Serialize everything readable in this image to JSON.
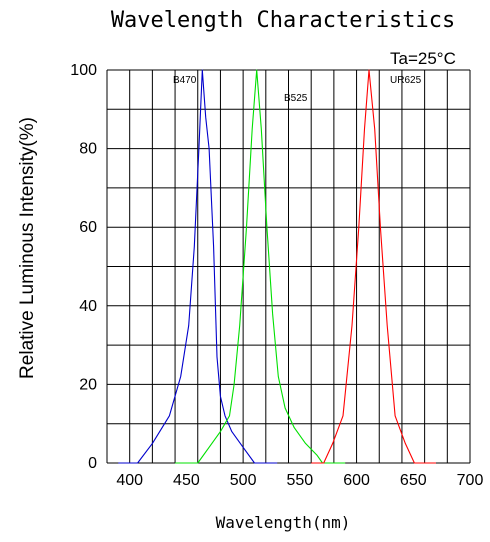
{
  "chart_data": {
    "type": "line",
    "title": "Wavelength Characteristics",
    "xlabel": "Wavelength(nm)",
    "ylabel": "Relative Luminous Intensity(%)",
    "annotation": "Ta=25°C",
    "xlim": [
      380,
      700
    ],
    "ylim": [
      0,
      100
    ],
    "xticks": [
      400,
      450,
      500,
      550,
      600,
      650,
      700
    ],
    "yticks": [
      0,
      20,
      40,
      60,
      80,
      100
    ],
    "grid": true,
    "series": [
      {
        "name": "B470",
        "color": "#0000cc",
        "points": [
          [
            390,
            0
          ],
          [
            407,
            0
          ],
          [
            420,
            5
          ],
          [
            435,
            12
          ],
          [
            445,
            22
          ],
          [
            452,
            35
          ],
          [
            457,
            55
          ],
          [
            461,
            80
          ],
          [
            464,
            100
          ],
          [
            467,
            88
          ],
          [
            470,
            80
          ],
          [
            474,
            55
          ],
          [
            477,
            27
          ],
          [
            480,
            17
          ],
          [
            484,
            12
          ],
          [
            490,
            8
          ],
          [
            500,
            4
          ],
          [
            510,
            0
          ],
          [
            530,
            0
          ]
        ]
      },
      {
        "name": "B525",
        "color": "#00e000",
        "points": [
          [
            440,
            0
          ],
          [
            460,
            0
          ],
          [
            470,
            4
          ],
          [
            480,
            8
          ],
          [
            488,
            12
          ],
          [
            492,
            20
          ],
          [
            497,
            35
          ],
          [
            503,
            60
          ],
          [
            508,
            85
          ],
          [
            512,
            100
          ],
          [
            516,
            85
          ],
          [
            521,
            60
          ],
          [
            526,
            38
          ],
          [
            531,
            22
          ],
          [
            537,
            14
          ],
          [
            545,
            9
          ],
          [
            555,
            5
          ],
          [
            565,
            2
          ],
          [
            570,
            0
          ],
          [
            590,
            0
          ]
        ]
      },
      {
        "name": "UR625",
        "color": "#ff0000",
        "points": [
          [
            560,
            0
          ],
          [
            571,
            0
          ],
          [
            579,
            5
          ],
          [
            588,
            12
          ],
          [
            596,
            35
          ],
          [
            602,
            60
          ],
          [
            607,
            85
          ],
          [
            611,
            100
          ],
          [
            616,
            85
          ],
          [
            621,
            60
          ],
          [
            627,
            35
          ],
          [
            634,
            12
          ],
          [
            643,
            5
          ],
          [
            651,
            0
          ],
          [
            670,
            0
          ]
        ]
      }
    ]
  }
}
